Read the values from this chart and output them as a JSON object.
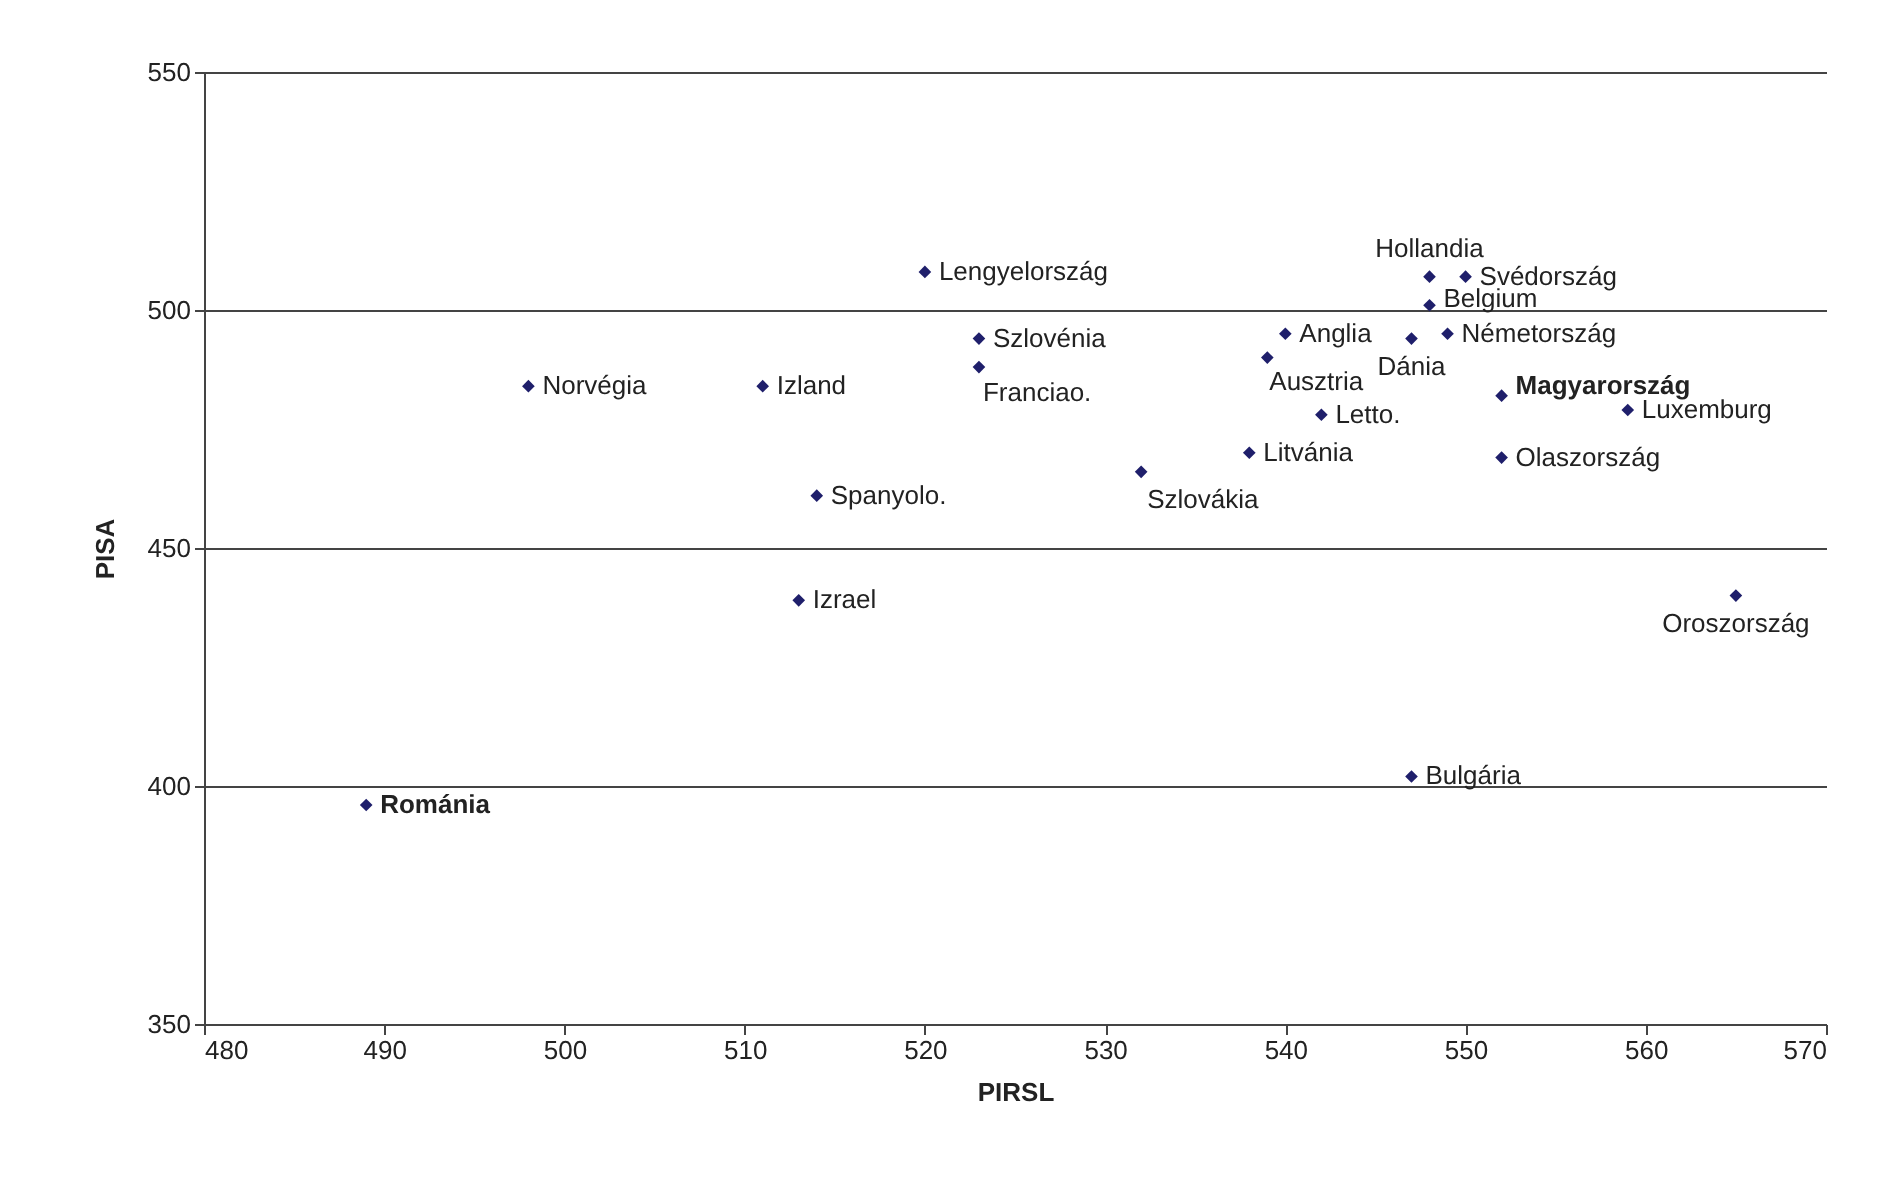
{
  "chart_data": {
    "type": "scatter",
    "xlabel": "PIRSL",
    "ylabel": "PISA",
    "xlim": [
      480,
      570
    ],
    "xticks": [
      480,
      490,
      500,
      510,
      520,
      530,
      540,
      550,
      560,
      570
    ],
    "ylim": [
      350,
      550
    ],
    "yticks": [
      350,
      400,
      450,
      500,
      550
    ],
    "grid": "y",
    "marker": "diamond",
    "series": [
      {
        "color": "#1f1f6b",
        "x": [
          520,
          498,
          511,
          523,
          523,
          514,
          513,
          489,
          547,
          565,
          548,
          550,
          548,
          540,
          549,
          547,
          539,
          552,
          542,
          559,
          538,
          552,
          532
        ],
        "values": [
          508,
          484,
          484,
          494,
          488,
          461,
          439,
          396,
          402,
          440,
          507,
          507,
          501,
          495,
          495,
          494,
          490,
          482,
          478,
          479,
          470,
          469,
          466
        ]
      }
    ],
    "annotations": [
      {
        "text": "Lengyelország",
        "x": 520,
        "y": 508
      },
      {
        "text": "Norvégia",
        "x": 498,
        "y": 484
      },
      {
        "text": "Izland",
        "x": 511,
        "y": 484
      },
      {
        "text": "Szlovénia",
        "x": 523,
        "y": 494
      },
      {
        "text": "Franciao.",
        "x": 523,
        "y": 488
      },
      {
        "text": "Spanyolo.",
        "x": 514,
        "y": 461
      },
      {
        "text": "Izrael",
        "x": 513,
        "y": 439
      },
      {
        "text": "Románia",
        "x": 489,
        "y": 396
      },
      {
        "text": "Bulgária",
        "x": 547,
        "y": 402
      },
      {
        "text": "Oroszország",
        "x": 565,
        "y": 440
      },
      {
        "text": "Hollandia",
        "x": 548,
        "y": 507
      },
      {
        "text": "Svédország",
        "x": 550,
        "y": 507
      },
      {
        "text": "Belgium",
        "x": 548,
        "y": 501
      },
      {
        "text": "Anglia",
        "x": 540,
        "y": 495
      },
      {
        "text": "Németország",
        "x": 549,
        "y": 495
      },
      {
        "text": "Dánia",
        "x": 547,
        "y": 494
      },
      {
        "text": "Ausztria",
        "x": 539,
        "y": 490
      },
      {
        "text": "Magyarország",
        "x": 552,
        "y": 482
      },
      {
        "text": "Letto.",
        "x": 542,
        "y": 478
      },
      {
        "text": "Luxemburg",
        "x": 559,
        "y": 479
      },
      {
        "text": "Litvánia",
        "x": 538,
        "y": 470
      },
      {
        "text": "Olaszország",
        "x": 552,
        "y": 469
      },
      {
        "text": "Szlovákia",
        "x": 532,
        "y": 466
      }
    ]
  }
}
